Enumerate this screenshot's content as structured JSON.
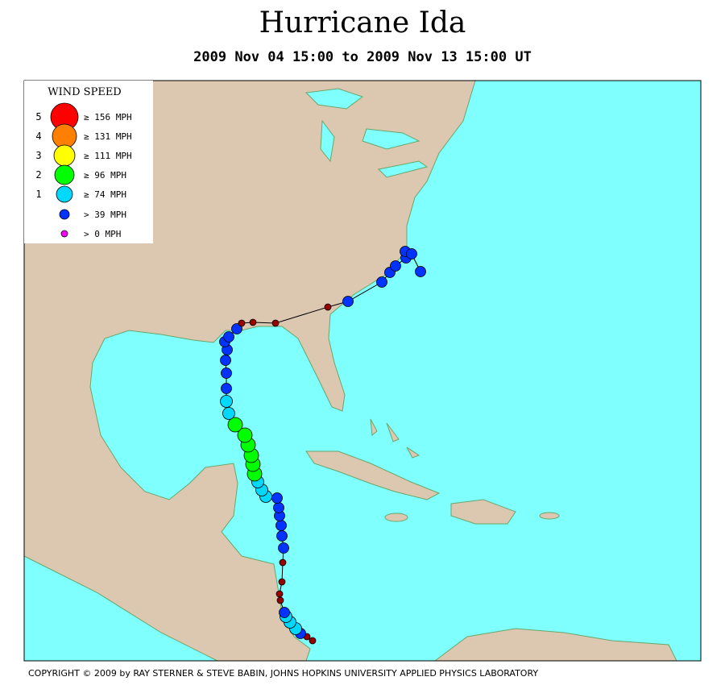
{
  "title": "Hurricane Ida",
  "subtitle": "2009 Nov 04 15:00 to 2009 Nov 13 15:00 UT",
  "legend": {
    "title": "WIND SPEED",
    "items": [
      {
        "category": "5",
        "label": "≥ 156 MPH",
        "color": "#ff0000"
      },
      {
        "category": "4",
        "label": "≥ 131 MPH",
        "color": "#ff7f00"
      },
      {
        "category": "3",
        "label": "≥ 111 MPH",
        "color": "#ffff00"
      },
      {
        "category": "2",
        "label": "≥ 96 MPH",
        "color": "#00ff00"
      },
      {
        "category": "1",
        "label": "≥ 74 MPH",
        "color": "#00d8ff"
      },
      {
        "label": "> 39 MPH",
        "color": "#0033ff"
      },
      {
        "label": "> 0 MPH",
        "color": "#ff00ff"
      }
    ]
  },
  "copyright": "COPYRIGHT © 2009 by RAY STERNER & STEVE BABIN, JOHNS HOPKINS UNIVERSITY APPLIED PHYSICS LABORATORY"
}
